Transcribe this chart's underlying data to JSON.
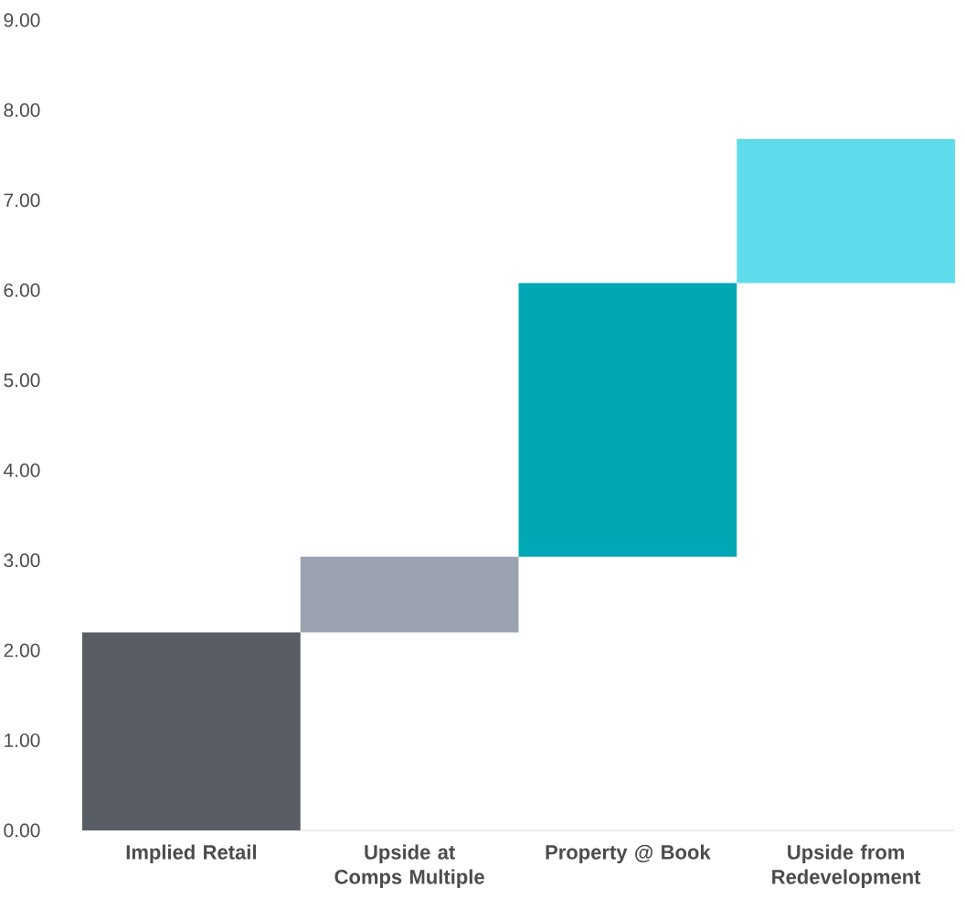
{
  "chart_data": {
    "type": "bar",
    "categories": [
      "Implied Retail",
      "Upside at Comps Multiple",
      "Property @ Book",
      "Upside from Redevelopment"
    ],
    "base": [
      0,
      2.2,
      3.04,
      6.08
    ],
    "values": [
      2.2,
      0.84,
      3.04,
      1.6
    ],
    "colors": [
      "#595e66",
      "#9ba3b0",
      "#00a8b5",
      "#5fdcec"
    ],
    "ylim": [
      0,
      9
    ],
    "yticks": [
      {
        "value": 0,
        "label": "0.00"
      },
      {
        "value": 1,
        "label": "1.00"
      },
      {
        "value": 2,
        "label": "2.00"
      },
      {
        "value": 3,
        "label": "3.00"
      },
      {
        "value": 4,
        "label": "4.00"
      },
      {
        "value": 5,
        "label": "5.00"
      },
      {
        "value": 6,
        "label": "6.00"
      },
      {
        "value": 7,
        "label": "7.00"
      },
      {
        "value": 8,
        "label": "8.00"
      },
      {
        "value": 9,
        "label": "9.00"
      }
    ]
  }
}
